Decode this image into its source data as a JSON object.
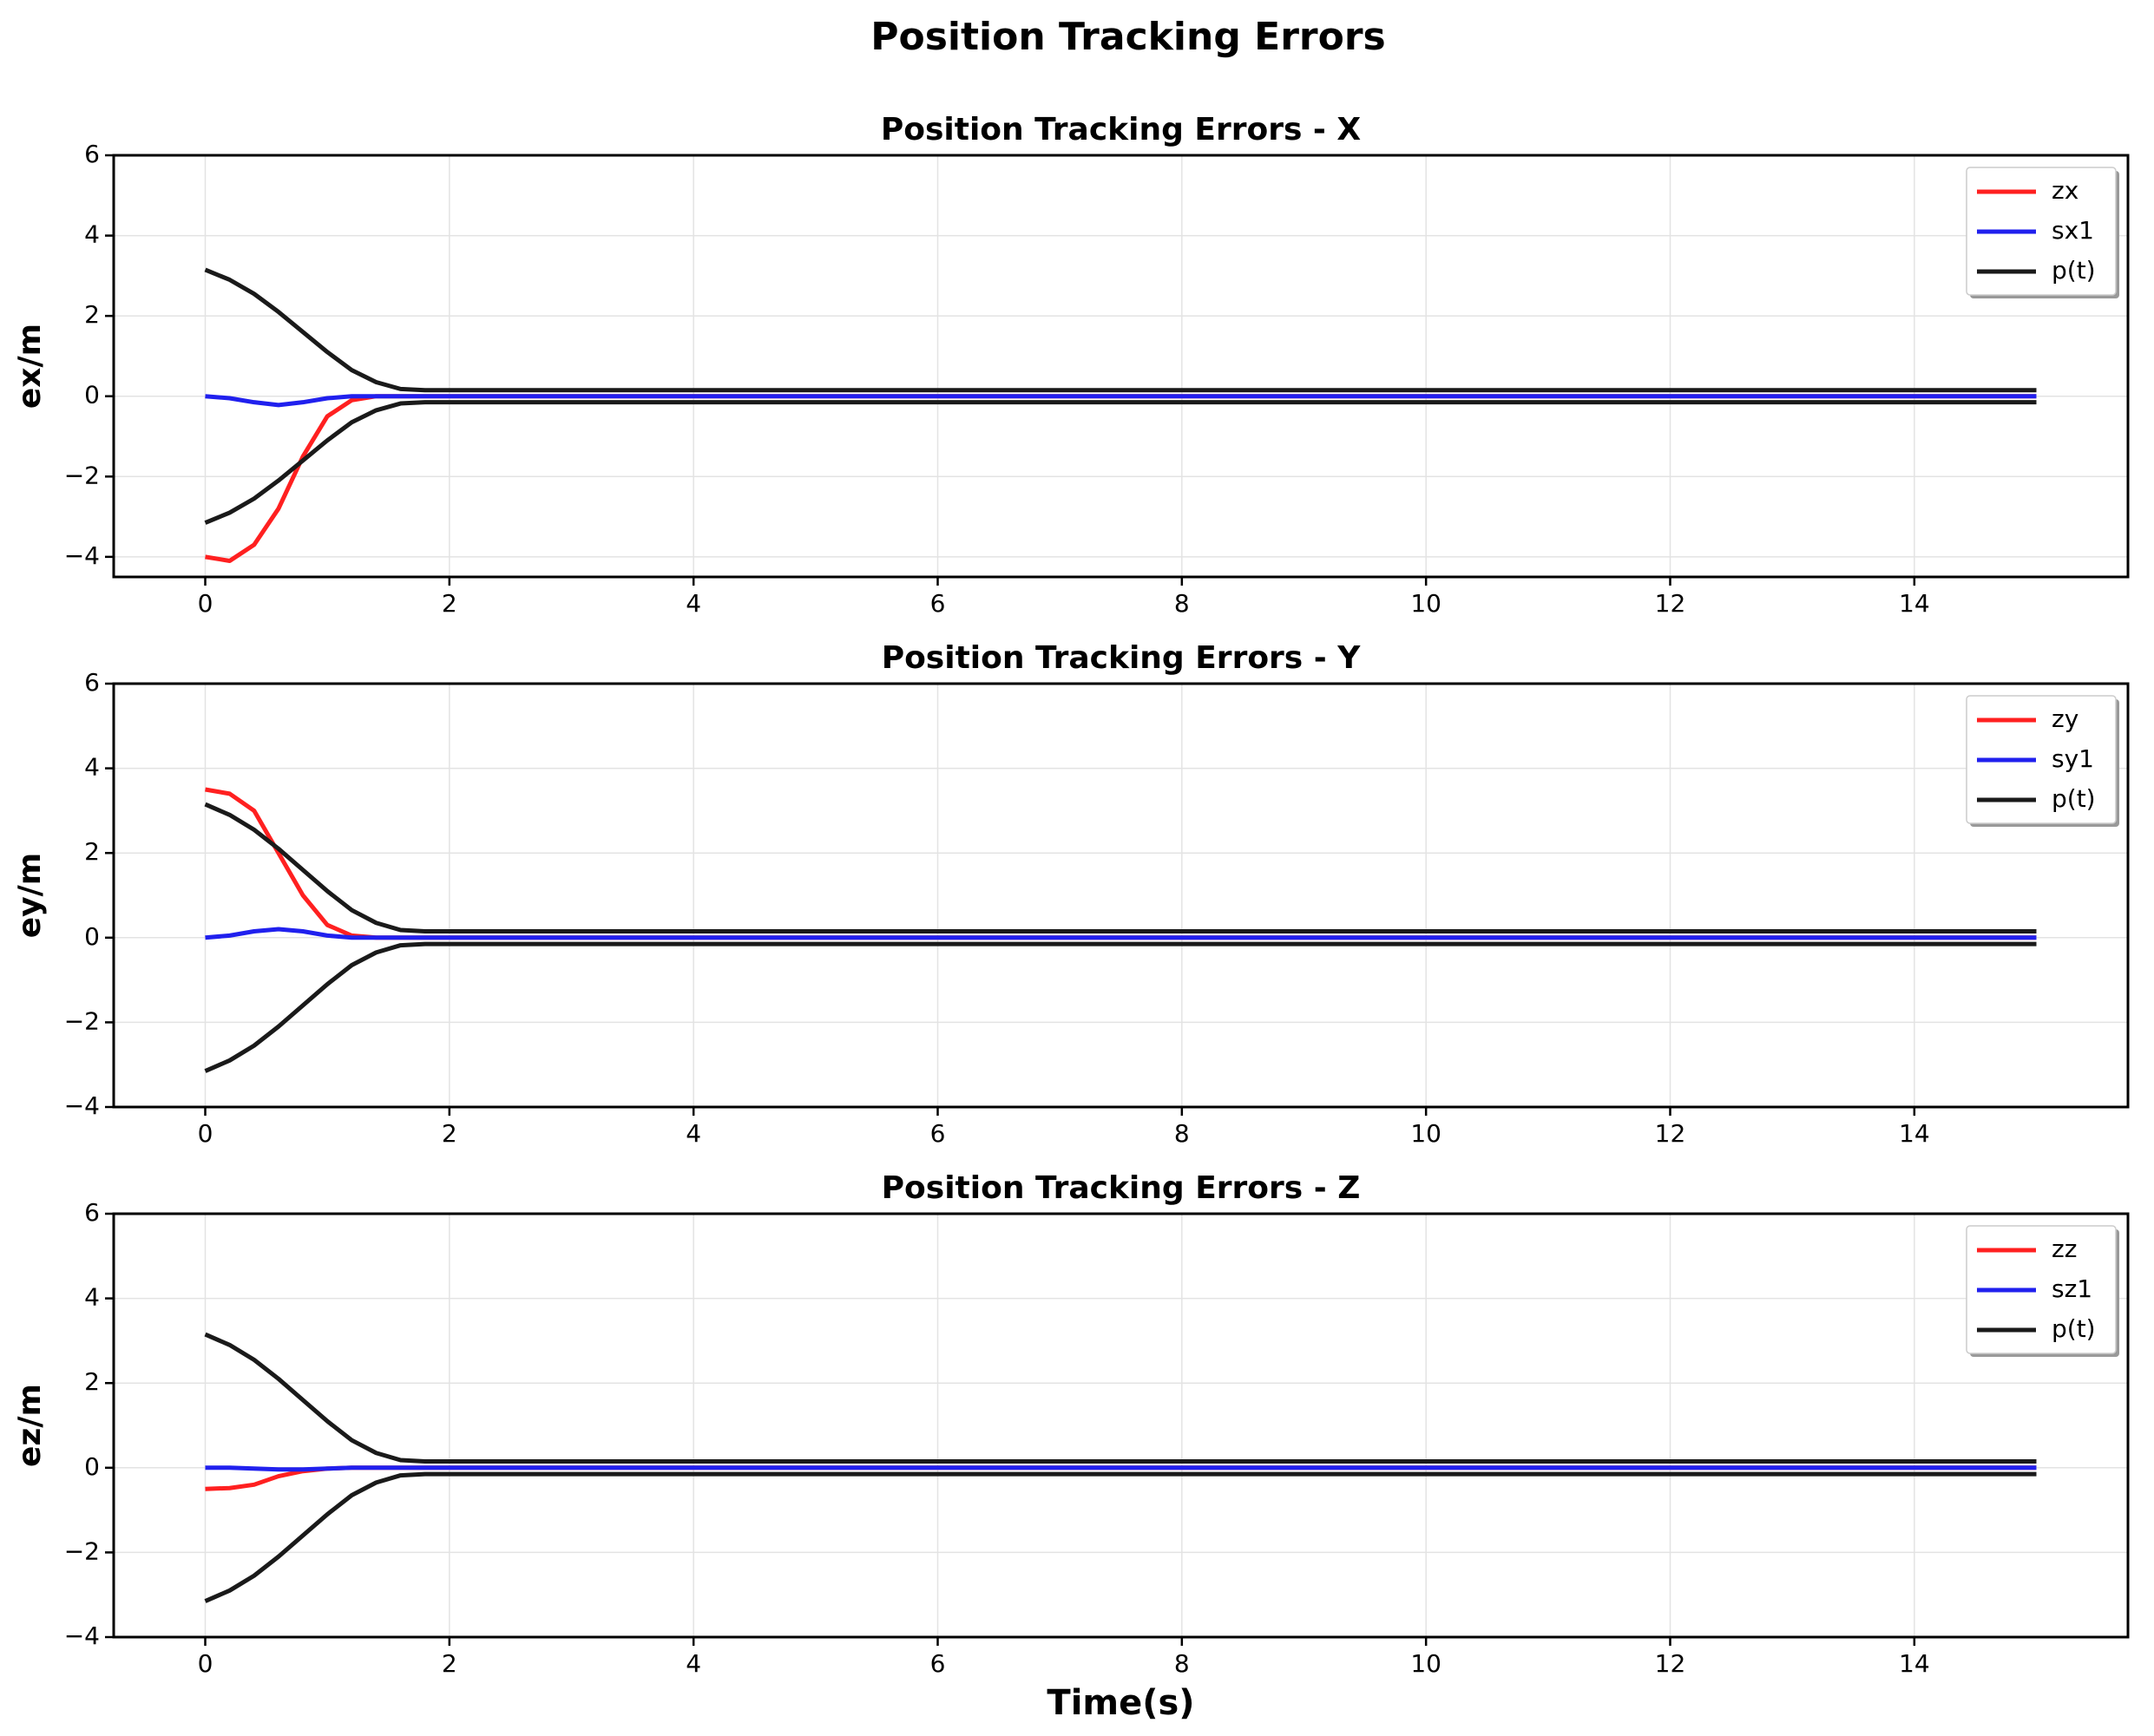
{
  "title": "Position Tracking Errors",
  "chart_data": [
    {
      "type": "line",
      "title": "Position Tracking Errors - X",
      "ylabel": "ex/m",
      "x": [
        0,
        0.2,
        0.4,
        0.6,
        0.8,
        1,
        1.2,
        1.4,
        1.6,
        1.8,
        2,
        15
      ],
      "series": [
        {
          "name": "zx",
          "color": "#ff2020",
          "values": [
            -4.0,
            -4.1,
            -3.7,
            -2.8,
            -1.5,
            -0.5,
            -0.1,
            0,
            0,
            0,
            0,
            0
          ]
        },
        {
          "name": "sx1",
          "color": "#2020ee",
          "values": [
            0,
            -0.05,
            -0.15,
            -0.22,
            -0.15,
            -0.05,
            0,
            0,
            0,
            0,
            0,
            0
          ]
        },
        {
          "name": "p(t)",
          "color": "#1a1a1a",
          "values": [
            3.15,
            2.9,
            2.55,
            2.1,
            1.6,
            1.1,
            0.65,
            0.35,
            0.18,
            0.15,
            0.15,
            0.15
          ],
          "lower": [
            -3.15,
            -2.9,
            -2.55,
            -2.1,
            -1.6,
            -1.1,
            -0.65,
            -0.35,
            -0.18,
            -0.15,
            -0.15,
            -0.15
          ]
        }
      ],
      "xlim": [
        -0.75,
        15.75
      ],
      "xticks": [
        0,
        2,
        4,
        6,
        8,
        10,
        12,
        14
      ],
      "ylim": [
        -4.5,
        6
      ],
      "yticks": [
        {
          "value": -4,
          "label": "−4"
        },
        {
          "value": -2,
          "label": "−2"
        },
        0,
        2,
        4,
        6
      ],
      "grid": true,
      "legend": "upper right"
    },
    {
      "type": "line",
      "title": "Position Tracking Errors - Y",
      "ylabel": "ey/m",
      "x": [
        0,
        0.2,
        0.4,
        0.6,
        0.8,
        1,
        1.2,
        1.4,
        1.6,
        1.8,
        2,
        15
      ],
      "series": [
        {
          "name": "zy",
          "color": "#ff2020",
          "values": [
            3.5,
            3.4,
            3.0,
            2.0,
            1.0,
            0.3,
            0.05,
            0,
            0,
            0,
            0,
            0
          ]
        },
        {
          "name": "sy1",
          "color": "#2020ee",
          "values": [
            0,
            0.05,
            0.15,
            0.2,
            0.15,
            0.05,
            0,
            0,
            0,
            0,
            0,
            0
          ]
        },
        {
          "name": "p(t)",
          "color": "#1a1a1a",
          "values": [
            3.15,
            2.9,
            2.55,
            2.1,
            1.6,
            1.1,
            0.65,
            0.35,
            0.18,
            0.15,
            0.15,
            0.15
          ],
          "lower": [
            -3.15,
            -2.9,
            -2.55,
            -2.1,
            -1.6,
            -1.1,
            -0.65,
            -0.35,
            -0.18,
            -0.15,
            -0.15,
            -0.15
          ]
        }
      ],
      "xlim": [
        -0.75,
        15.75
      ],
      "xticks": [
        0,
        2,
        4,
        6,
        8,
        10,
        12,
        14
      ],
      "ylim": [
        -4,
        6
      ],
      "yticks": [
        {
          "value": -4,
          "label": "−4"
        },
        {
          "value": -2,
          "label": "−2"
        },
        0,
        2,
        4,
        6
      ],
      "grid": true,
      "legend": "upper right"
    },
    {
      "type": "line",
      "title": "Position Tracking Errors - Z",
      "ylabel": "ez/m",
      "xlabel": "Time(s)",
      "x": [
        0,
        0.2,
        0.4,
        0.6,
        0.8,
        1,
        1.2,
        1.4,
        1.6,
        1.8,
        2,
        15
      ],
      "series": [
        {
          "name": "zz",
          "color": "#ff2020",
          "values": [
            -0.5,
            -0.48,
            -0.4,
            -0.2,
            -0.08,
            -0.02,
            0,
            0,
            0,
            0,
            0,
            0
          ]
        },
        {
          "name": "sz1",
          "color": "#2020ee",
          "values": [
            0,
            0,
            -0.02,
            -0.04,
            -0.04,
            -0.02,
            0,
            0,
            0,
            0,
            0,
            0
          ]
        },
        {
          "name": "p(t)",
          "color": "#1a1a1a",
          "values": [
            3.15,
            2.9,
            2.55,
            2.1,
            1.6,
            1.1,
            0.65,
            0.35,
            0.18,
            0.15,
            0.15,
            0.15
          ],
          "lower": [
            -3.15,
            -2.9,
            -2.55,
            -2.1,
            -1.6,
            -1.1,
            -0.65,
            -0.35,
            -0.18,
            -0.15,
            -0.15,
            -0.15
          ]
        }
      ],
      "xlim": [
        -0.75,
        15.75
      ],
      "xticks": [
        0,
        2,
        4,
        6,
        8,
        10,
        12,
        14
      ],
      "ylim": [
        -4,
        6
      ],
      "yticks": [
        {
          "value": -4,
          "label": "−4"
        },
        {
          "value": -2,
          "label": "−2"
        },
        0,
        2,
        4,
        6
      ],
      "grid": true,
      "legend": "upper right"
    }
  ]
}
